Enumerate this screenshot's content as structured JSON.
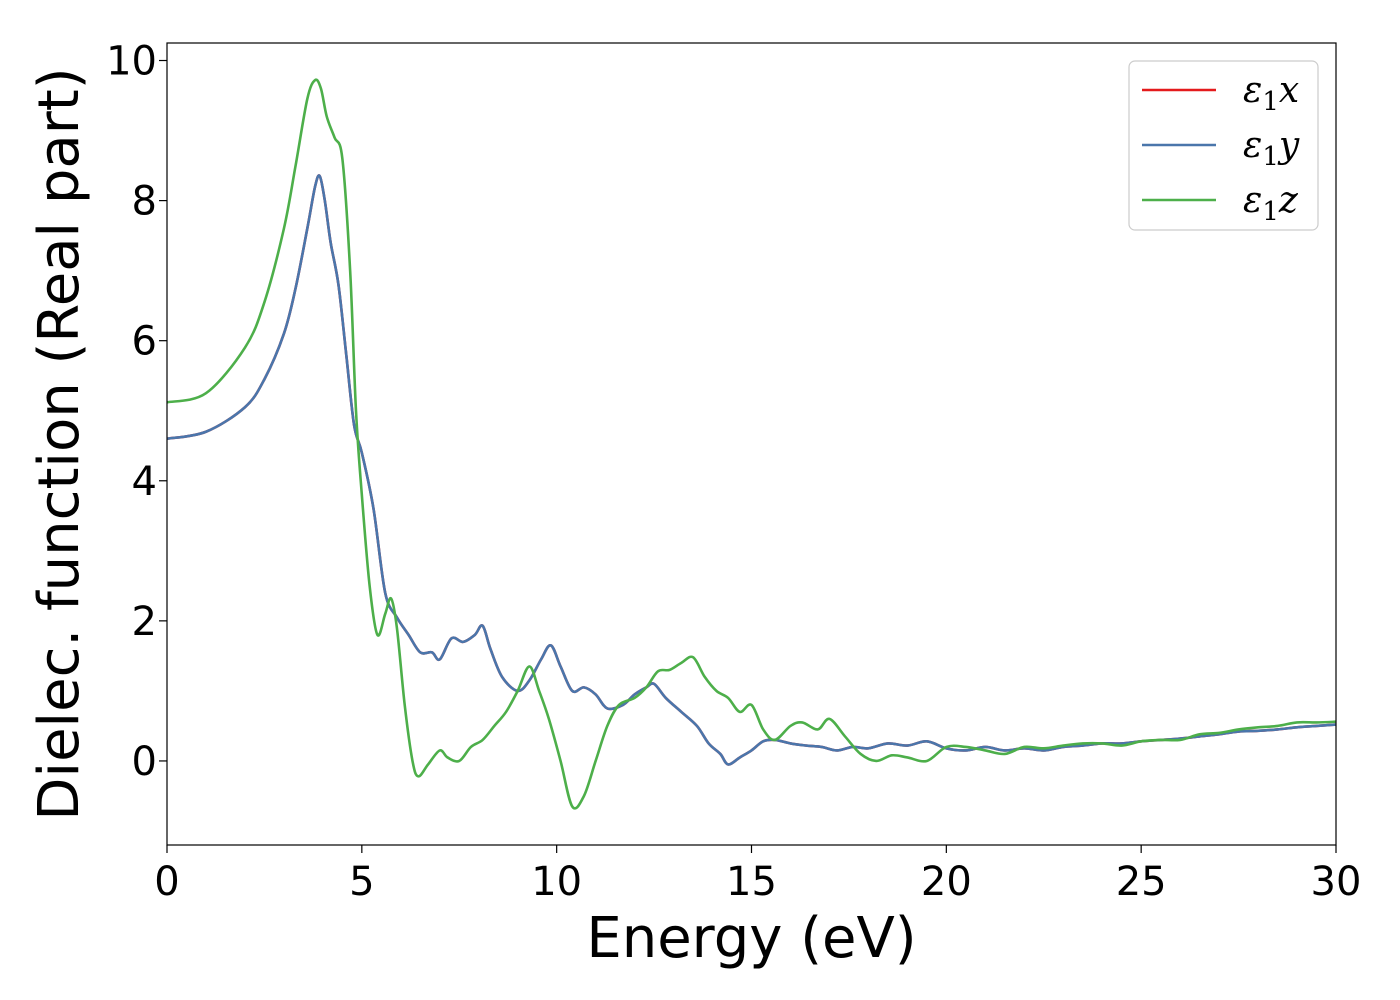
{
  "chart_data": {
    "type": "line",
    "title": "",
    "xlabel": "Energy (eV)",
    "ylabel": "Dielec. function (Real part)",
    "xlim": [
      0,
      30
    ],
    "ylim": [
      -1.2,
      10.25
    ],
    "xticks": [
      0,
      5,
      10,
      15,
      20,
      25,
      30
    ],
    "yticks": [
      0,
      2,
      4,
      6,
      8,
      10
    ],
    "grid": false,
    "legend_position": "top-right",
    "series": [
      {
        "name": "ε1x",
        "legend_base": "ε",
        "legend_sub": "1",
        "legend_var": "x",
        "color": "#e41a1c",
        "x": [
          0,
          1,
          2,
          2.5,
          3,
          3.3,
          3.6,
          3.8,
          3.92,
          4.05,
          4.2,
          4.4,
          4.6,
          4.8,
          5.0,
          5.3,
          5.6,
          5.9,
          6.2,
          6.5,
          6.8,
          7.0,
          7.3,
          7.6,
          7.9,
          8.1,
          8.3,
          8.6,
          9.0,
          9.3,
          9.6,
          9.85,
          10.1,
          10.4,
          10.7,
          11.0,
          11.3,
          11.7,
          12.0,
          12.3,
          12.5,
          12.8,
          13.2,
          13.6,
          13.9,
          14.2,
          14.4,
          14.7,
          15.0,
          15.3,
          15.6,
          16.0,
          16.4,
          16.8,
          17.2,
          17.6,
          18.0,
          18.5,
          19.0,
          19.5,
          20.0,
          20.5,
          21.0,
          21.5,
          22.0,
          22.5,
          23.0,
          23.5,
          24.0,
          24.5,
          25.0,
          25.5,
          26.0,
          26.5,
          27.0,
          27.5,
          28.0,
          28.5,
          29.0,
          29.5,
          30.0
        ],
        "y": [
          4.6,
          4.7,
          5.05,
          5.45,
          6.1,
          6.75,
          7.6,
          8.2,
          8.35,
          8.0,
          7.4,
          6.8,
          5.8,
          4.8,
          4.4,
          3.6,
          2.4,
          2.05,
          1.8,
          1.55,
          1.55,
          1.45,
          1.75,
          1.7,
          1.8,
          1.93,
          1.6,
          1.2,
          1.0,
          1.15,
          1.45,
          1.65,
          1.35,
          1.0,
          1.05,
          0.95,
          0.75,
          0.8,
          0.95,
          1.05,
          1.1,
          0.9,
          0.7,
          0.5,
          0.25,
          0.1,
          -0.05,
          0.05,
          0.15,
          0.28,
          0.3,
          0.25,
          0.22,
          0.2,
          0.15,
          0.2,
          0.18,
          0.25,
          0.22,
          0.28,
          0.18,
          0.15,
          0.2,
          0.15,
          0.18,
          0.15,
          0.2,
          0.22,
          0.25,
          0.25,
          0.28,
          0.3,
          0.32,
          0.35,
          0.38,
          0.42,
          0.43,
          0.45,
          0.48,
          0.5,
          0.52
        ]
      },
      {
        "name": "ε1y",
        "legend_base": "ε",
        "legend_sub": "1",
        "legend_var": "y",
        "color": "#4a76ab",
        "x": [
          0,
          1,
          2,
          2.5,
          3,
          3.3,
          3.6,
          3.8,
          3.92,
          4.05,
          4.2,
          4.4,
          4.6,
          4.8,
          5.0,
          5.3,
          5.6,
          5.9,
          6.2,
          6.5,
          6.8,
          7.0,
          7.3,
          7.6,
          7.9,
          8.1,
          8.3,
          8.6,
          9.0,
          9.3,
          9.6,
          9.85,
          10.1,
          10.4,
          10.7,
          11.0,
          11.3,
          11.7,
          12.0,
          12.3,
          12.5,
          12.8,
          13.2,
          13.6,
          13.9,
          14.2,
          14.4,
          14.7,
          15.0,
          15.3,
          15.6,
          16.0,
          16.4,
          16.8,
          17.2,
          17.6,
          18.0,
          18.5,
          19.0,
          19.5,
          20.0,
          20.5,
          21.0,
          21.5,
          22.0,
          22.5,
          23.0,
          23.5,
          24.0,
          24.5,
          25.0,
          25.5,
          26.0,
          26.5,
          27.0,
          27.5,
          28.0,
          28.5,
          29.0,
          29.5,
          30.0
        ],
        "y": [
          4.6,
          4.7,
          5.05,
          5.45,
          6.1,
          6.75,
          7.6,
          8.2,
          8.35,
          8.0,
          7.4,
          6.8,
          5.8,
          4.8,
          4.4,
          3.6,
          2.4,
          2.05,
          1.8,
          1.55,
          1.55,
          1.45,
          1.75,
          1.7,
          1.8,
          1.93,
          1.6,
          1.2,
          1.0,
          1.15,
          1.45,
          1.65,
          1.35,
          1.0,
          1.05,
          0.95,
          0.75,
          0.8,
          0.95,
          1.05,
          1.1,
          0.9,
          0.7,
          0.5,
          0.25,
          0.1,
          -0.05,
          0.05,
          0.15,
          0.28,
          0.3,
          0.25,
          0.22,
          0.2,
          0.15,
          0.2,
          0.18,
          0.25,
          0.22,
          0.28,
          0.18,
          0.15,
          0.2,
          0.15,
          0.18,
          0.15,
          0.2,
          0.22,
          0.25,
          0.25,
          0.28,
          0.3,
          0.32,
          0.35,
          0.38,
          0.42,
          0.43,
          0.45,
          0.48,
          0.5,
          0.52
        ]
      },
      {
        "name": "ε1z",
        "legend_base": "ε",
        "legend_sub": "1",
        "legend_var": "z",
        "color": "#4daf4a",
        "x": [
          0,
          1,
          2,
          2.5,
          3,
          3.3,
          3.6,
          3.8,
          3.95,
          4.1,
          4.3,
          4.5,
          4.7,
          4.85,
          5.0,
          5.2,
          5.4,
          5.6,
          5.75,
          5.9,
          6.1,
          6.3,
          6.45,
          6.7,
          7.0,
          7.2,
          7.5,
          7.8,
          8.1,
          8.4,
          8.7,
          9.0,
          9.3,
          9.55,
          9.8,
          10.1,
          10.4,
          10.7,
          11.0,
          11.3,
          11.6,
          12.0,
          12.3,
          12.6,
          12.9,
          13.2,
          13.5,
          13.8,
          14.1,
          14.4,
          14.7,
          15.0,
          15.3,
          15.6,
          16.0,
          16.3,
          16.7,
          17.0,
          17.4,
          17.8,
          18.2,
          18.6,
          19.0,
          19.5,
          20.0,
          20.5,
          21.0,
          21.5,
          22.0,
          22.5,
          23.0,
          23.5,
          24.0,
          24.5,
          25.0,
          25.5,
          26.0,
          26.5,
          27.0,
          27.5,
          28.0,
          28.5,
          29.0,
          29.5,
          30.0
        ],
        "y": [
          5.12,
          5.25,
          5.9,
          6.55,
          7.6,
          8.5,
          9.45,
          9.72,
          9.6,
          9.2,
          8.9,
          8.6,
          7.0,
          5.0,
          3.8,
          2.5,
          1.8,
          2.1,
          2.32,
          1.9,
          0.8,
          0.0,
          -0.22,
          -0.05,
          0.15,
          0.05,
          0.0,
          0.2,
          0.3,
          0.5,
          0.7,
          1.0,
          1.35,
          1.0,
          0.6,
          0.0,
          -0.65,
          -0.5,
          0.0,
          0.5,
          0.8,
          0.9,
          1.05,
          1.28,
          1.3,
          1.4,
          1.48,
          1.2,
          1.0,
          0.9,
          0.7,
          0.8,
          0.45,
          0.3,
          0.5,
          0.55,
          0.45,
          0.6,
          0.35,
          0.1,
          0.0,
          0.08,
          0.05,
          0.0,
          0.2,
          0.2,
          0.15,
          0.1,
          0.2,
          0.18,
          0.22,
          0.25,
          0.25,
          0.22,
          0.28,
          0.3,
          0.3,
          0.38,
          0.4,
          0.45,
          0.48,
          0.5,
          0.55,
          0.55,
          0.56
        ]
      }
    ]
  }
}
